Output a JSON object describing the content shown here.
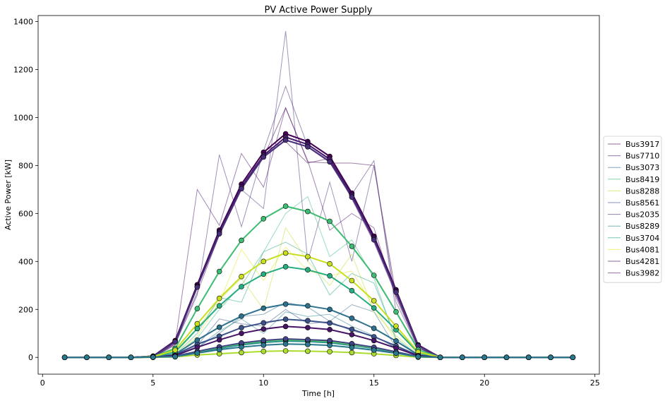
{
  "chart_data": {
    "type": "line",
    "title": "PV Active Power Supply",
    "xlabel": "Time [h]",
    "ylabel": "Active Power [kW]",
    "xlim": [
      -0.2,
      25.2
    ],
    "ylim": [
      -70,
      1425
    ],
    "xticks": [
      0,
      5,
      10,
      15,
      20,
      25
    ],
    "yticks": [
      0,
      200,
      400,
      600,
      800,
      1000,
      1200,
      1400
    ],
    "grid": false,
    "legend_position": "right-outside",
    "x": [
      1,
      2,
      3,
      4,
      5,
      6,
      7,
      8,
      9,
      10,
      11,
      12,
      13,
      14,
      15,
      16,
      17,
      18,
      19,
      20,
      21,
      22,
      23,
      24
    ],
    "legend_series": [
      {
        "name": "Bus3917",
        "color": "#440154",
        "values": [
          0,
          0,
          0,
          0,
          0,
          55,
          300,
          510,
          720,
          835,
          1040,
          815,
          810,
          810,
          800,
          260,
          45,
          0,
          0,
          0,
          0,
          0,
          0,
          0
        ]
      },
      {
        "name": "Bus7710",
        "color": "#482475",
        "values": [
          0,
          0,
          0,
          0,
          0,
          55,
          260,
          845,
          545,
          860,
          1130,
          880,
          820,
          680,
          820,
          190,
          40,
          0,
          0,
          0,
          0,
          0,
          0,
          0
        ]
      },
      {
        "name": "Bus3073",
        "color": "#31688e",
        "values": [
          0,
          0,
          0,
          0,
          0,
          5,
          40,
          100,
          170,
          180,
          230,
          210,
          150,
          220,
          190,
          40,
          5,
          0,
          0,
          0,
          0,
          0,
          0,
          0
        ]
      },
      {
        "name": "Bus8419",
        "color": "#35b779",
        "values": [
          0,
          0,
          0,
          0,
          0,
          10,
          80,
          200,
          300,
          440,
          600,
          670,
          420,
          490,
          330,
          70,
          10,
          0,
          0,
          0,
          0,
          0,
          0,
          0
        ]
      },
      {
        "name": "Bus8288",
        "color": "#bddf26",
        "values": [
          0,
          0,
          0,
          0,
          0,
          10,
          120,
          240,
          330,
          200,
          540,
          400,
          300,
          430,
          190,
          90,
          15,
          0,
          0,
          0,
          0,
          0,
          0,
          0
        ]
      },
      {
        "name": "Bus8561",
        "color": "#3e4989",
        "values": [
          0,
          0,
          0,
          0,
          0,
          5,
          50,
          160,
          140,
          130,
          200,
          140,
          150,
          110,
          90,
          40,
          5,
          0,
          0,
          0,
          0,
          0,
          0,
          0
        ]
      },
      {
        "name": "Bus2035",
        "color": "#472d7b",
        "values": [
          0,
          0,
          0,
          0,
          0,
          50,
          300,
          510,
          700,
          620,
          1360,
          400,
          730,
          400,
          800,
          230,
          40,
          0,
          0,
          0,
          0,
          0,
          0,
          0
        ]
      },
      {
        "name": "Bus8289",
        "color": "#26828e",
        "values": [
          0,
          0,
          0,
          0,
          0,
          5,
          40,
          110,
          160,
          100,
          190,
          170,
          180,
          130,
          90,
          40,
          5,
          0,
          0,
          0,
          0,
          0,
          0,
          0
        ]
      },
      {
        "name": "Bus3704",
        "color": "#20a486",
        "values": [
          0,
          0,
          0,
          0,
          0,
          10,
          100,
          250,
          230,
          440,
          480,
          430,
          260,
          350,
          310,
          80,
          10,
          0,
          0,
          0,
          0,
          0,
          0,
          0
        ]
      },
      {
        "name": "Bus4081",
        "color": "#e8e419",
        "values": [
          0,
          0,
          0,
          0,
          0,
          5,
          90,
          230,
          450,
          320,
          460,
          360,
          340,
          360,
          210,
          70,
          10,
          0,
          0,
          0,
          0,
          0,
          0,
          0
        ]
      },
      {
        "name": "Bus4281",
        "color": "#440154",
        "values": [
          0,
          0,
          0,
          0,
          0,
          60,
          270,
          510,
          700,
          860,
          900,
          810,
          830,
          660,
          480,
          260,
          40,
          0,
          0,
          0,
          0,
          0,
          0,
          0
        ]
      },
      {
        "name": "Bus3982",
        "color": "#471063",
        "values": [
          0,
          0,
          0,
          0,
          0,
          60,
          700,
          550,
          850,
          710,
          1040,
          820,
          530,
          600,
          540,
          250,
          40,
          0,
          0,
          0,
          0,
          0,
          0,
          0
        ]
      }
    ],
    "marker_series": [
      {
        "color": "#440154",
        "values": [
          0,
          0,
          0,
          0,
          5,
          70,
          303,
          530,
          722,
          855,
          932,
          900,
          838,
          685,
          505,
          282,
          52,
          0,
          0,
          0,
          0,
          0,
          0,
          0
        ]
      },
      {
        "color": "#481a6c",
        "values": [
          0,
          0,
          0,
          0,
          5,
          66,
          296,
          522,
          710,
          842,
          918,
          888,
          826,
          676,
          496,
          276,
          50,
          0,
          0,
          0,
          0,
          0,
          0,
          0
        ]
      },
      {
        "color": "#472f7d",
        "values": [
          0,
          0,
          0,
          0,
          5,
          65,
          293,
          515,
          703,
          835,
          906,
          878,
          815,
          668,
          490,
          272,
          49,
          0,
          0,
          0,
          0,
          0,
          0,
          0
        ]
      },
      {
        "color": "#3b528b",
        "values": [
          0,
          0,
          0,
          0,
          1,
          10,
          55,
          88,
          124,
          144,
          159,
          153,
          143,
          117,
          86,
          48,
          8,
          0,
          0,
          0,
          0,
          0,
          0,
          0
        ]
      },
      {
        "color": "#2c728e",
        "values": [
          0,
          0,
          0,
          0,
          1,
          13,
          72,
          126,
          172,
          205,
          222,
          215,
          200,
          163,
          121,
          68,
          11,
          0,
          0,
          0,
          0,
          0,
          0,
          0
        ]
      },
      {
        "color": "#21918c",
        "values": [
          0,
          0,
          0,
          0,
          1,
          4,
          22,
          38,
          52,
          62,
          68,
          66,
          61,
          50,
          37,
          20,
          3,
          0,
          0,
          0,
          0,
          0,
          0,
          0
        ]
      },
      {
        "color": "#27ad81",
        "values": [
          0,
          0,
          0,
          0,
          2,
          22,
          120,
          215,
          295,
          347,
          378,
          365,
          340,
          278,
          206,
          115,
          20,
          0,
          0,
          0,
          0,
          0,
          0,
          0
        ]
      },
      {
        "color": "#3fbc73",
        "values": [
          0,
          0,
          0,
          0,
          3,
          37,
          203,
          358,
          488,
          578,
          630,
          608,
          567,
          463,
          342,
          190,
          32,
          0,
          0,
          0,
          0,
          0,
          0,
          0
        ]
      },
      {
        "color": "#5ec962",
        "values": [
          0,
          0,
          0,
          0,
          1,
          5,
          24,
          42,
          57,
          68,
          74,
          71,
          66,
          54,
          40,
          22,
          4,
          0,
          0,
          0,
          0,
          0,
          0,
          0
        ]
      },
      {
        "color": "#addc30",
        "values": [
          0,
          0,
          0,
          0,
          0,
          2,
          10,
          15,
          20,
          25,
          27,
          26,
          24,
          20,
          15,
          8,
          1,
          0,
          0,
          0,
          0,
          0,
          0,
          0
        ]
      },
      {
        "color": "#c8e020",
        "values": [
          0,
          0,
          0,
          0,
          2,
          30,
          140,
          246,
          337,
          400,
          435,
          420,
          390,
          320,
          236,
          130,
          23,
          0,
          0,
          0,
          0,
          0,
          0,
          0
        ]
      },
      {
        "color": "#481467",
        "values": [
          0,
          0,
          0,
          0,
          1,
          8,
          42,
          73,
          100,
          118,
          129,
          124,
          116,
          95,
          70,
          39,
          7,
          0,
          0,
          0,
          0,
          0,
          0,
          0
        ]
      },
      {
        "color": "#414487",
        "values": [
          0,
          0,
          0,
          0,
          1,
          5,
          25,
          44,
          60,
          71,
          77,
          74,
          70,
          57,
          42,
          23,
          4,
          0,
          0,
          0,
          0,
          0,
          0,
          0
        ]
      },
      {
        "color": "#2a788e",
        "values": [
          0,
          0,
          0,
          0,
          1,
          3,
          18,
          32,
          43,
          51,
          56,
          54,
          50,
          41,
          30,
          17,
          3,
          0,
          0,
          0,
          0,
          0,
          0,
          0
        ]
      }
    ]
  }
}
